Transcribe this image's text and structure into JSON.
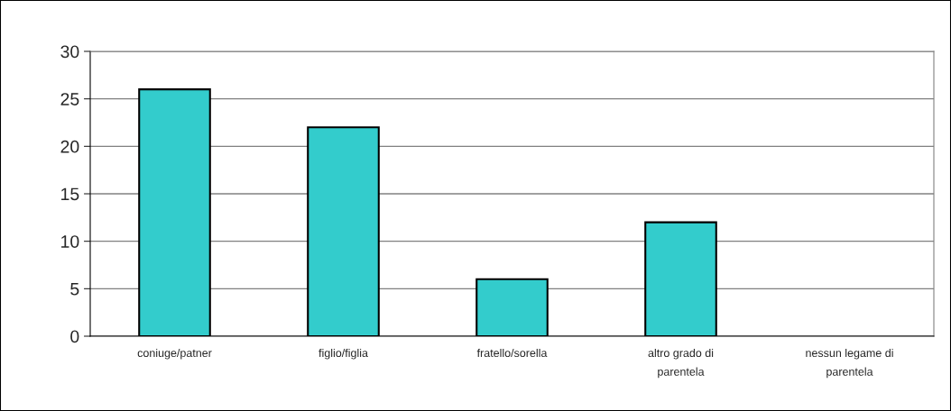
{
  "chart_data": {
    "type": "bar",
    "categories": [
      "coniuge/patner",
      "figlio/figlia",
      "fratello/sorella",
      "altro grado di\nparentela",
      "nessun legame di\nparentela"
    ],
    "values": [
      26,
      22,
      6,
      12,
      0
    ],
    "color": "#33cccc",
    "ylim": [
      0,
      30
    ],
    "yticks": [
      0,
      5,
      10,
      15,
      20,
      25,
      30
    ],
    "grid": "y",
    "legend": false
  }
}
